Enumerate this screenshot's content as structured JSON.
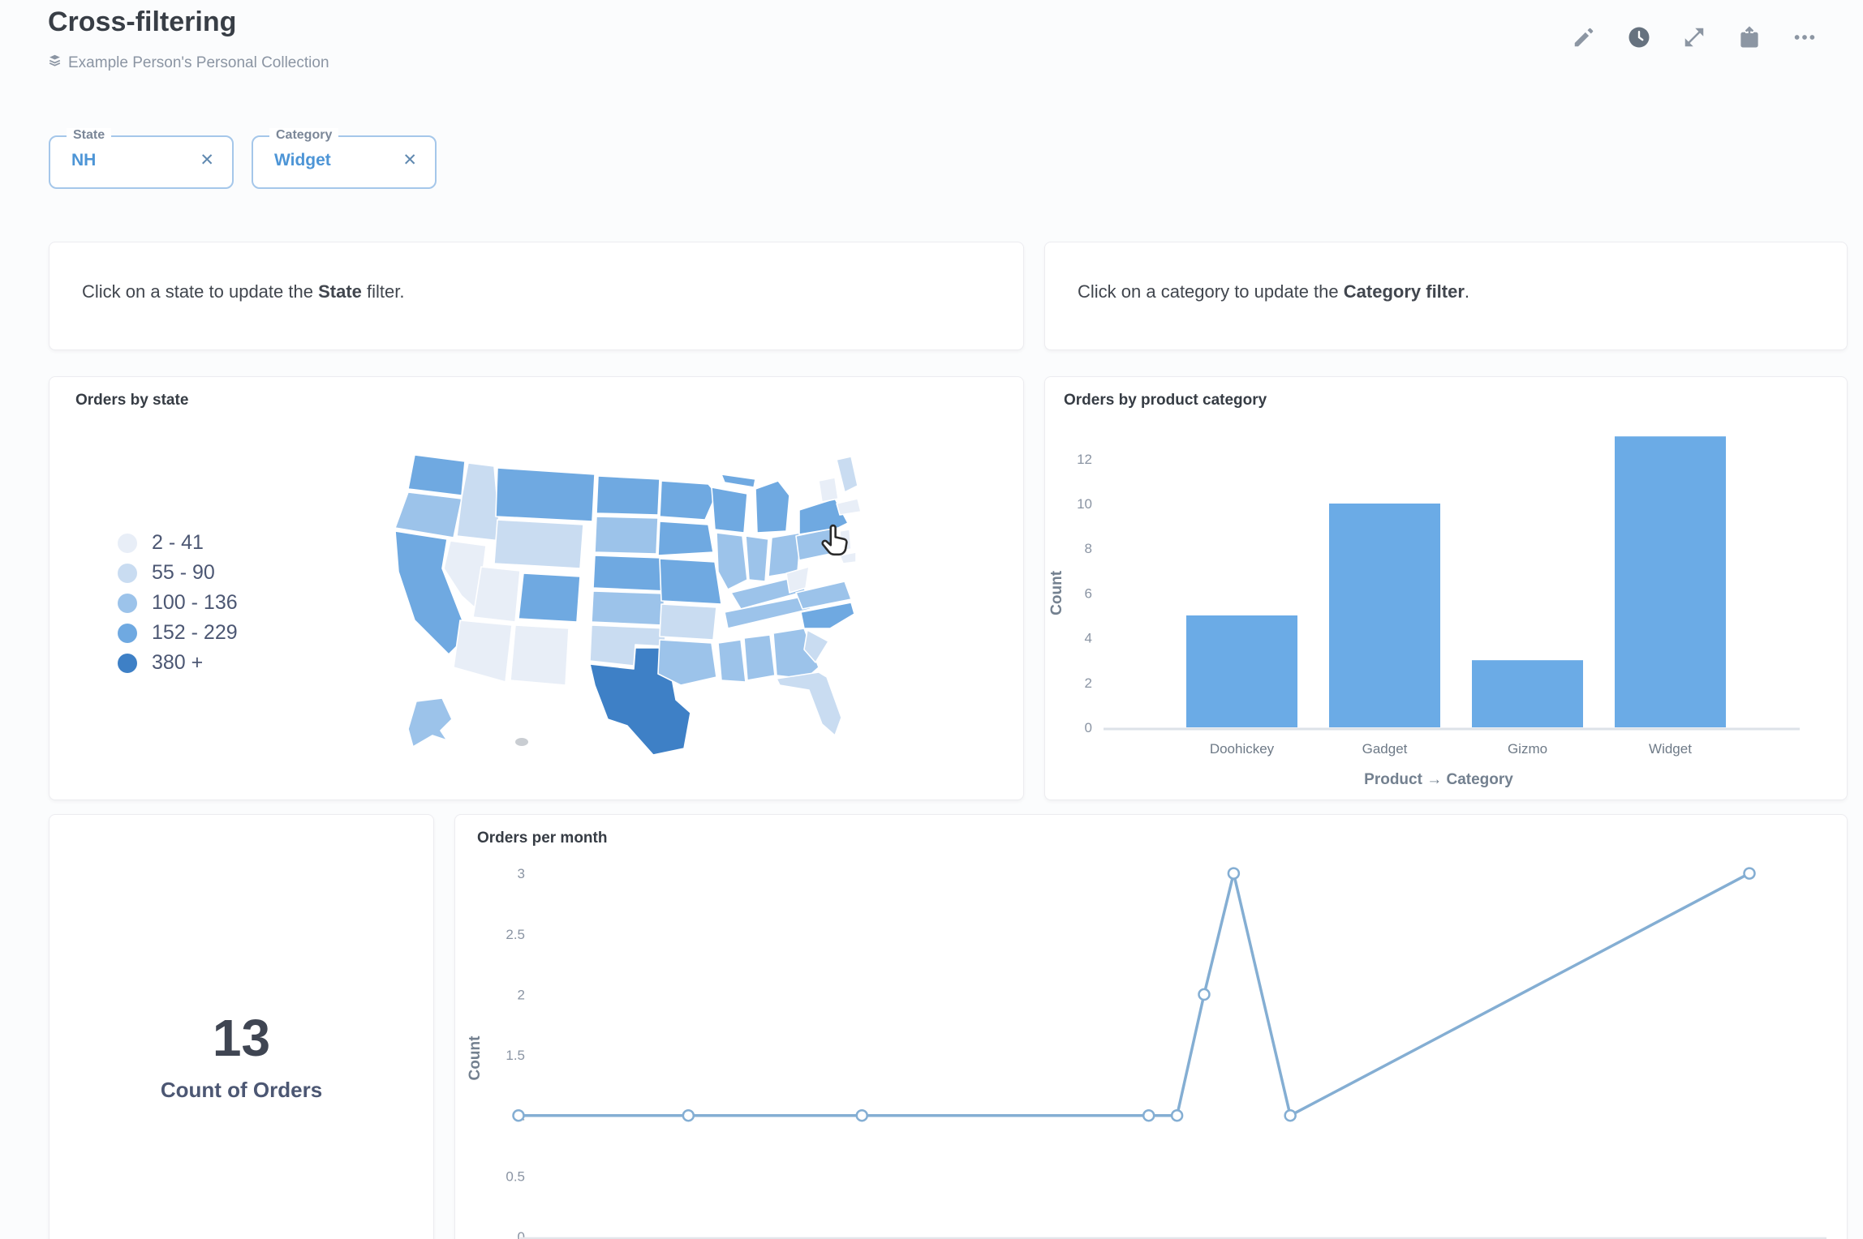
{
  "header": {
    "title": "Cross-filtering",
    "collection_label": "Example Person's Personal Collection",
    "action_icons": [
      "edit-pencil",
      "history-clock",
      "fullscreen",
      "share",
      "more-ellipsis"
    ]
  },
  "filters": [
    {
      "label": "State",
      "value": "NH",
      "clear": "✕"
    },
    {
      "label": "Category",
      "value": "Widget",
      "clear": "✕"
    }
  ],
  "text_cards": [
    {
      "pre": "Click on a state to update the ",
      "bold": "State",
      "post": " filter."
    },
    {
      "pre": "Click on a category to update the ",
      "bold": "Category filter",
      "post": "."
    }
  ],
  "chart_data": [
    {
      "id": "orders_by_state",
      "type": "choropleth",
      "title": "Orders by state",
      "legend": [
        {
          "label": "2 - 41",
          "color": "#E8EEF7"
        },
        {
          "label": "55 - 90",
          "color": "#C9DCF1"
        },
        {
          "label": "100 - 136",
          "color": "#9CC3EA"
        },
        {
          "label": "152 - 229",
          "color": "#6FA9E1"
        },
        {
          "label": "380 +",
          "color": "#3E80C6"
        }
      ],
      "states": {
        "WA": 4,
        "OR": 3,
        "ID": 2,
        "MT": 4,
        "WY": 2,
        "NV": 1,
        "UT": 1,
        "CA": 4,
        "AZ": 1,
        "NM": 1,
        "CO": 4,
        "ND": 4,
        "SD": 3,
        "NE": 4,
        "KS": 3,
        "OK": 2,
        "TX": 5,
        "MN": 4,
        "IA": 4,
        "MO": 4,
        "AR": 2,
        "LA": 3,
        "WI": 4,
        "IL": 3,
        "MI": 4,
        "MI_UP": 4,
        "IN": 3,
        "OH": 3,
        "KY": 3,
        "TN": 3,
        "MS": 3,
        "AL": 3,
        "GA": 3,
        "FL": 2,
        "SC": 2,
        "NC": 4,
        "VA": 3,
        "WV": 1,
        "PA": 3,
        "NY": 4,
        "NJ": 1,
        "MD": 1,
        "VT_NH": 1,
        "ME": 2,
        "MA": 1,
        "AK": 3
      },
      "other_color": "#c9cdd2"
    },
    {
      "id": "orders_by_product_category",
      "type": "bar",
      "title": "Orders by product category",
      "categories": [
        "Doohickey",
        "Gadget",
        "Gizmo",
        "Widget"
      ],
      "values": [
        5,
        10,
        3,
        13
      ],
      "xlabel": "Product → Category",
      "ylabel": "Count",
      "yticks": [
        0,
        2,
        4,
        6,
        8,
        10,
        12
      ],
      "ylim": [
        0,
        13
      ],
      "bar_color": "#6BABE6"
    },
    {
      "id": "count_of_orders",
      "type": "scalar",
      "value": "13",
      "label": "Count of Orders"
    },
    {
      "id": "orders_per_month",
      "type": "line",
      "title": "Orders per month",
      "ylabel": "Count",
      "yticks": [
        0,
        0.5,
        1,
        1.5,
        2,
        2.5,
        3
      ],
      "ylim": [
        0,
        3
      ],
      "points": [
        {
          "x": 0,
          "y": 1
        },
        {
          "x": 0.138,
          "y": 1
        },
        {
          "x": 0.279,
          "y": 1
        },
        {
          "x": 0.512,
          "y": 1
        },
        {
          "x": 0.535,
          "y": 1
        },
        {
          "x": 0.557,
          "y": 2
        },
        {
          "x": 0.581,
          "y": 3
        },
        {
          "x": 0.627,
          "y": 1
        },
        {
          "x": 1,
          "y": 3
        }
      ],
      "line_color": "#84AED3"
    }
  ]
}
